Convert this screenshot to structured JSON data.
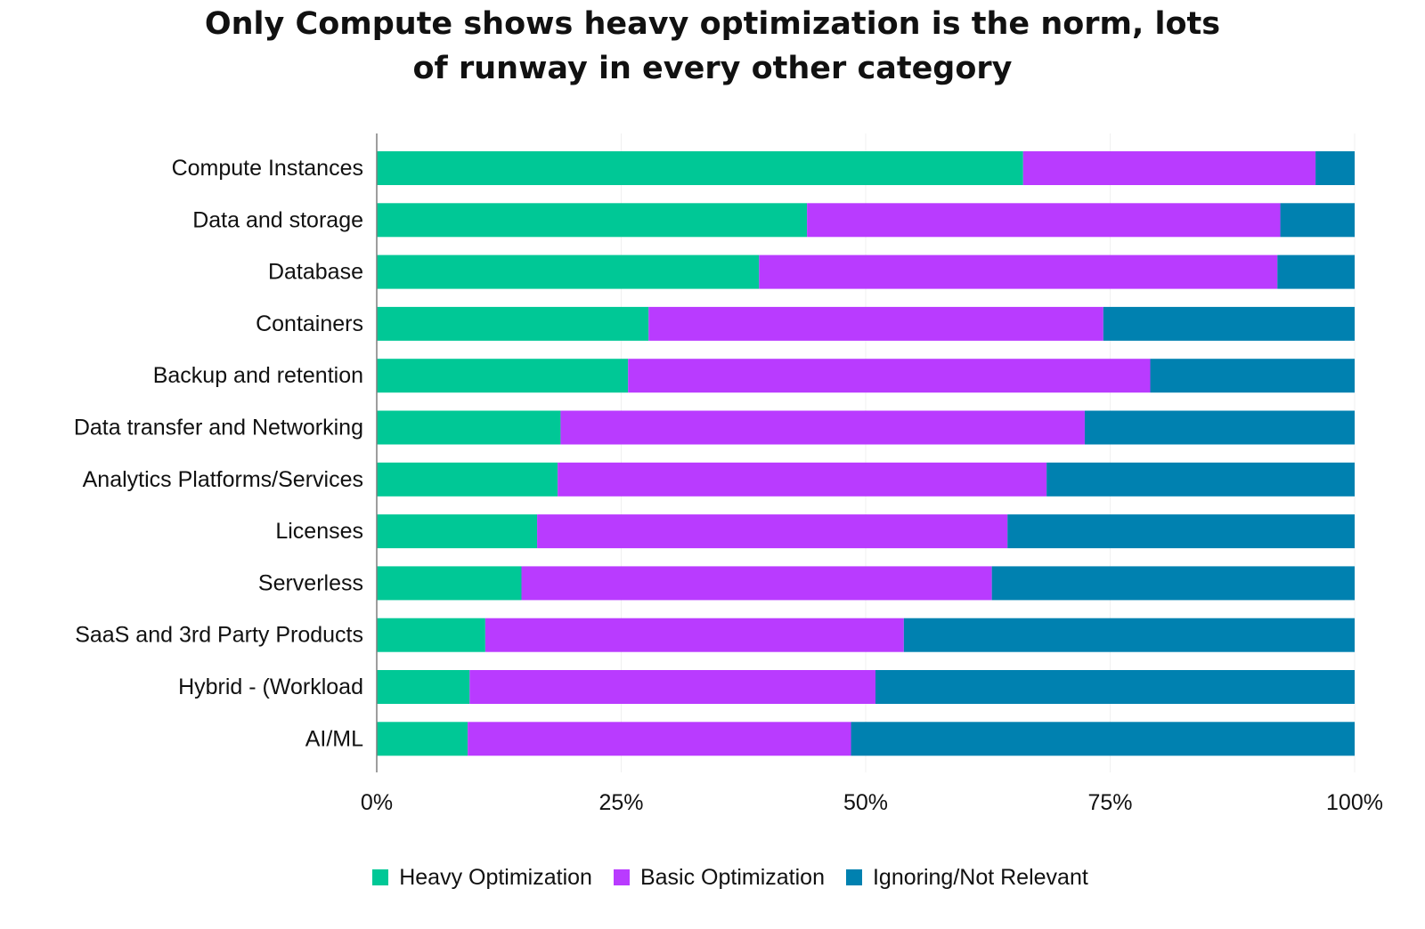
{
  "chart_data": {
    "type": "bar",
    "orientation": "horizontal",
    "stacked": true,
    "title_lines": [
      "Only Compute shows heavy optimization is the norm, lots",
      "of runway in every other category"
    ],
    "categories": [
      "Compute Instances",
      "Data and storage",
      "Database",
      "Containers",
      "Backup and retention",
      "Data transfer and Networking",
      "Analytics Platforms/Services",
      "Licenses",
      "Serverless",
      "SaaS and 3rd Party Products",
      "Hybrid - (Workload",
      "AI/ML"
    ],
    "series": [
      {
        "name": "Heavy Optimization",
        "color": "#00C896",
        "values": [
          66.1,
          44.0,
          39.1,
          27.8,
          25.7,
          18.8,
          18.5,
          16.4,
          14.8,
          11.1,
          9.5,
          9.3
        ]
      },
      {
        "name": "Basic Optimization",
        "color": "#B93BFF",
        "values": [
          29.9,
          48.4,
          53.0,
          46.5,
          53.4,
          53.6,
          50.0,
          48.1,
          48.1,
          42.8,
          41.5,
          39.2
        ]
      },
      {
        "name": "Ignoring/Not Relevant",
        "color": "#0081B0",
        "values": [
          4.0,
          7.6,
          7.9,
          25.7,
          20.9,
          27.6,
          31.5,
          35.5,
          37.1,
          46.1,
          49.0,
          51.5
        ]
      }
    ],
    "xlim": [
      0,
      100
    ],
    "xticks": [
      "0%",
      "25%",
      "50%",
      "75%",
      "100%"
    ],
    "xtick_values": [
      0,
      25,
      50,
      75,
      100
    ],
    "grid": true,
    "legend_position": "bottom"
  }
}
